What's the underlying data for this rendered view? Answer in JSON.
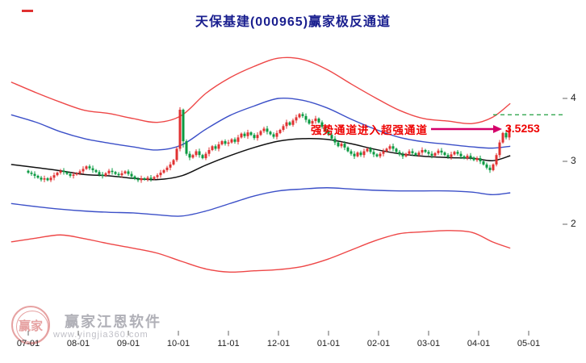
{
  "title": "天保基建(000965)赢家极反通道",
  "annotation": {
    "text": "强势通道进入超强通道",
    "price_label": "3.5253"
  },
  "watermark": {
    "logo_text": "赢家",
    "brand": "赢家江恩软件",
    "url": "www.yingjia360.com"
  },
  "colors": {
    "title": "#1a1f8f",
    "annotation_text": "#ee0000",
    "price_label": "#ee0000",
    "arrow": "#d4006a",
    "candle_up": "#e03131",
    "candle_down": "#0a9a41",
    "band_red": "#ee4747",
    "band_blue": "#3c50c8",
    "band_mid": "#111111",
    "dashed_line": "#1e9e3e",
    "tick": "#666666",
    "tick_label": "#222222",
    "watermark_red": "#e49898",
    "watermark_gray": "#a8a8b0",
    "watermark_gray_light": "#b8b8c0"
  },
  "chart_data": {
    "type": "candlestick",
    "title": "天保基建(000965)赢家极反通道",
    "legend": "none",
    "grid": false,
    "x_ticks": [
      "07-01",
      "08-01",
      "09-01",
      "10-01",
      "11-01",
      "12-01",
      "01-01",
      "02-01",
      "03-01",
      "04-01",
      "05-01"
    ],
    "y_ticks": [
      {
        "label": "4",
        "value": 4
      },
      {
        "label": "3",
        "value": 3
      },
      {
        "label": "2",
        "value": 2
      }
    ],
    "ylim": [
      1.1,
      4.9
    ],
    "last_price": 3.5253,
    "projection_price": 3.74,
    "closes": [
      2.82,
      2.8,
      2.77,
      2.74,
      2.71,
      2.73,
      2.7,
      2.74,
      2.78,
      2.82,
      2.85,
      2.83,
      2.8,
      2.77,
      2.79,
      2.81,
      2.84,
      2.88,
      2.92,
      2.89,
      2.86,
      2.83,
      2.79,
      2.77,
      2.81,
      2.85,
      2.83,
      2.8,
      2.78,
      2.81,
      2.84,
      2.8,
      2.76,
      2.72,
      2.7,
      2.73,
      2.71,
      2.74,
      2.72,
      2.75,
      2.78,
      2.82,
      2.86,
      2.9,
      2.95,
      3.02,
      3.2,
      3.82,
      3.32,
      3.12,
      3.06,
      3.1,
      3.16,
      3.1,
      3.05,
      3.12,
      3.18,
      3.24,
      3.2,
      3.27,
      3.32,
      3.28,
      3.3,
      3.35,
      3.31,
      3.38,
      3.44,
      3.4,
      3.46,
      3.42,
      3.37,
      3.42,
      3.48,
      3.52,
      3.47,
      3.43,
      3.39,
      3.45,
      3.5,
      3.56,
      3.62,
      3.58,
      3.65,
      3.7,
      3.75,
      3.72,
      3.66,
      3.6,
      3.64,
      3.68,
      3.62,
      3.55,
      3.48,
      3.42,
      3.36,
      3.3,
      3.24,
      3.28,
      3.22,
      3.16,
      3.12,
      3.08,
      3.14,
      3.1,
      3.16,
      3.2,
      3.15,
      3.11,
      3.08,
      3.12,
      3.16,
      3.2,
      3.24,
      3.2,
      3.15,
      3.11,
      3.08,
      3.12,
      3.16,
      3.13,
      3.1,
      3.14,
      3.18,
      3.15,
      3.12,
      3.09,
      3.13,
      3.17,
      3.14,
      3.1,
      3.07,
      3.11,
      3.15,
      3.12,
      3.08,
      3.05,
      3.09,
      3.06,
      3.02,
      3.05,
      3.0,
      2.95,
      2.9,
      2.86,
      2.95,
      3.1,
      3.3,
      3.45,
      3.38,
      3.53
    ],
    "wick_overrides": {
      "47": {
        "h": 3.86
      },
      "48": {
        "l": 3.22
      },
      "146": {
        "h": 3.34
      },
      "149": {
        "h": 3.58
      }
    },
    "bands": {
      "x_index": [
        -5.3,
        2.5,
        10,
        17.5,
        25,
        32.5,
        40,
        47.5,
        55,
        62.5,
        70,
        77.5,
        85,
        92.5,
        100,
        107.5,
        115,
        122.5,
        130,
        137.5,
        143.8,
        149.3
      ],
      "upper_red": [
        4.26,
        4.09,
        3.94,
        3.81,
        3.76,
        3.68,
        3.62,
        3.73,
        4.08,
        4.33,
        4.51,
        4.64,
        4.62,
        4.46,
        4.23,
        4.01,
        3.81,
        3.68,
        3.64,
        3.6,
        3.7,
        3.92
      ],
      "upper_blue": [
        3.74,
        3.62,
        3.47,
        3.36,
        3.29,
        3.23,
        3.18,
        3.26,
        3.51,
        3.73,
        3.88,
        4.0,
        3.97,
        3.85,
        3.67,
        3.51,
        3.38,
        3.31,
        3.27,
        3.23,
        3.21,
        3.24
      ],
      "middle": [
        2.95,
        2.9,
        2.85,
        2.79,
        2.77,
        2.73,
        2.71,
        2.77,
        2.94,
        3.09,
        3.22,
        3.32,
        3.36,
        3.35,
        3.28,
        3.19,
        3.12,
        3.08,
        3.06,
        3.05,
        3.01,
        3.09
      ],
      "lower_blue": [
        2.33,
        2.28,
        2.24,
        2.21,
        2.19,
        2.18,
        2.15,
        2.13,
        2.21,
        2.33,
        2.45,
        2.53,
        2.56,
        2.58,
        2.56,
        2.54,
        2.53,
        2.53,
        2.53,
        2.51,
        2.47,
        2.5
      ],
      "lower_red": [
        1.72,
        1.78,
        1.83,
        1.77,
        1.69,
        1.62,
        1.54,
        1.41,
        1.29,
        1.24,
        1.26,
        1.28,
        1.33,
        1.44,
        1.59,
        1.74,
        1.85,
        1.88,
        1.9,
        1.87,
        1.72,
        1.62
      ]
    }
  }
}
